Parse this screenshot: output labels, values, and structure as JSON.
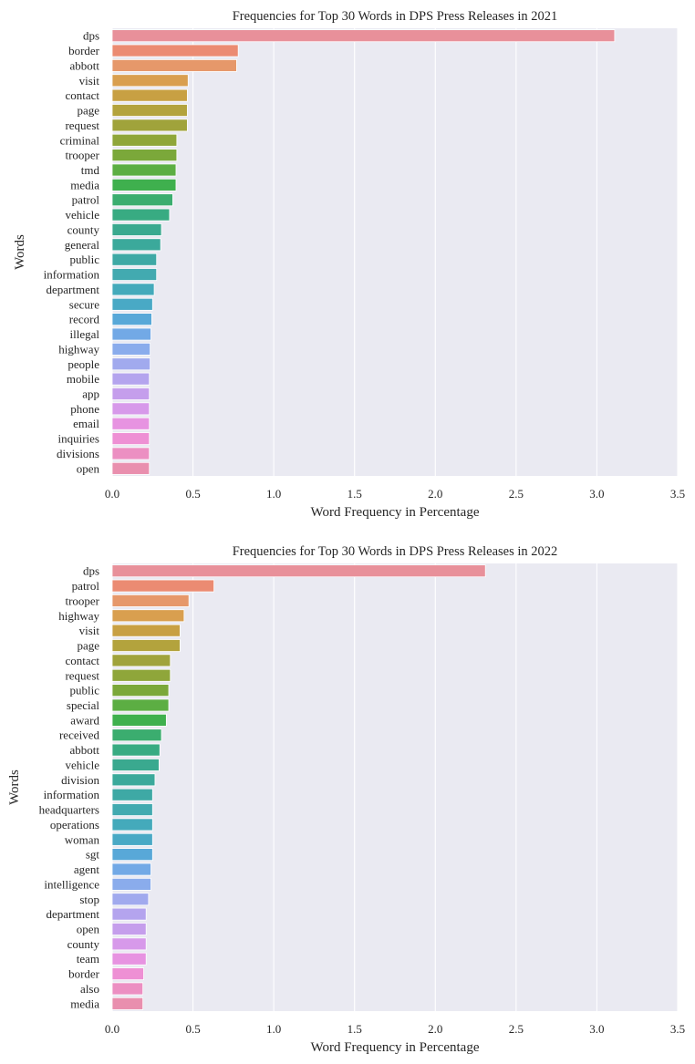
{
  "chart_data": [
    {
      "type": "bar",
      "orientation": "horizontal",
      "title": "Frequencies for Top 30 Words in DPS Press Releases in 2021",
      "xlabel": "Word Frequency in Percentage",
      "ylabel": "Words",
      "xlim": [
        0,
        3.5
      ],
      "xticks": [
        "0.0",
        "0.5",
        "1.0",
        "1.5",
        "2.0",
        "2.5",
        "3.0",
        "3.5"
      ],
      "grid": true,
      "categories": [
        "dps",
        "border",
        "abbott",
        "visit",
        "contact",
        "page",
        "request",
        "criminal",
        "trooper",
        "tmd",
        "media",
        "patrol",
        "vehicle",
        "county",
        "general",
        "public",
        "information",
        "department",
        "secure",
        "record",
        "illegal",
        "highway",
        "people",
        "mobile",
        "app",
        "phone",
        "email",
        "inquiries",
        "divisions",
        "open"
      ],
      "values": [
        3.11,
        0.78,
        0.77,
        0.47,
        0.465,
        0.465,
        0.465,
        0.4,
        0.4,
        0.395,
        0.395,
        0.375,
        0.355,
        0.305,
        0.3,
        0.275,
        0.275,
        0.26,
        0.25,
        0.245,
        0.24,
        0.235,
        0.235,
        0.23,
        0.23,
        0.23,
        0.23,
        0.23,
        0.23,
        0.23
      ]
    },
    {
      "type": "bar",
      "orientation": "horizontal",
      "title": "Frequencies for Top 30 Words in DPS Press Releases in 2022",
      "xlabel": "Word Frequency in Percentage",
      "ylabel": "Words",
      "xlim": [
        0,
        3.5
      ],
      "xticks": [
        "0.0",
        "0.5",
        "1.0",
        "1.5",
        "2.0",
        "2.5",
        "3.0",
        "3.5"
      ],
      "grid": true,
      "categories": [
        "dps",
        "patrol",
        "trooper",
        "highway",
        "visit",
        "page",
        "contact",
        "request",
        "public",
        "special",
        "award",
        "received",
        "abbott",
        "vehicle",
        "division",
        "information",
        "headquarters",
        "operations",
        "woman",
        "sgt",
        "agent",
        "intelligence",
        "stop",
        "department",
        "open",
        "county",
        "team",
        "border",
        "also",
        "media"
      ],
      "values": [
        2.31,
        0.63,
        0.475,
        0.445,
        0.42,
        0.42,
        0.36,
        0.36,
        0.35,
        0.35,
        0.335,
        0.305,
        0.295,
        0.29,
        0.265,
        0.25,
        0.25,
        0.25,
        0.25,
        0.25,
        0.24,
        0.24,
        0.225,
        0.21,
        0.21,
        0.21,
        0.21,
        0.195,
        0.19,
        0.19
      ]
    }
  ],
  "palette": [
    "#e8909a",
    "#eb8b72",
    "#e6986a",
    "#d99f4f",
    "#c8a043",
    "#b3a33d",
    "#a0a33b",
    "#8fa63a",
    "#7ba83a",
    "#5cae43",
    "#3fb04e",
    "#3bad6f",
    "#38ab82",
    "#3aa98f",
    "#3ba99b",
    "#3ea9a5",
    "#42aab0",
    "#44aabb",
    "#49a9c5",
    "#58a8d8",
    "#72a9e6",
    "#8aacec",
    "#a1aaee",
    "#b4a4ee",
    "#c59eec",
    "#d799ea",
    "#e793e1",
    "#ee90d4",
    "#ec8fc2",
    "#e98fae"
  ],
  "background_color": "#eaeaf2",
  "grid_color": "#ffffff"
}
